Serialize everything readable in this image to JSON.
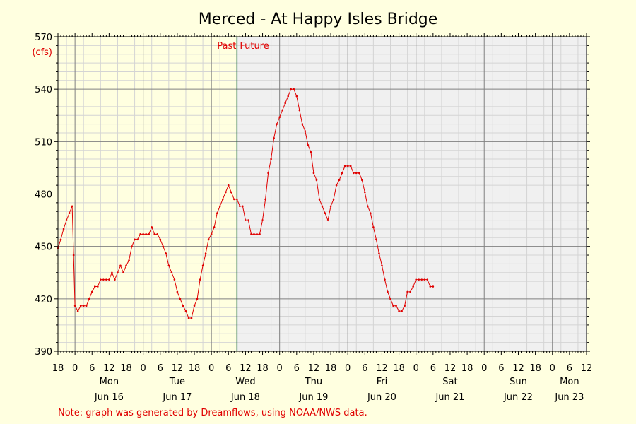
{
  "chart_data": {
    "type": "line",
    "title": "Merced - At Happy Isles Bridge",
    "ylabel": "(cfs)",
    "ylim": [
      390,
      570
    ],
    "yticks": [
      390,
      420,
      450,
      480,
      510,
      540,
      570
    ],
    "x_unit": "hours since Sun Jun 15 18:00",
    "xlim": [
      0,
      186
    ],
    "hour_tick_labels": [
      "18",
      "0",
      "6",
      "12",
      "18",
      "0",
      "6",
      "12",
      "18",
      "0",
      "6",
      "12",
      "18",
      "0",
      "6",
      "12",
      "18",
      "0",
      "6",
      "12",
      "18",
      "0",
      "6",
      "12",
      "18",
      "0",
      "6",
      "12",
      "18",
      "0",
      "6",
      "12"
    ],
    "day_labels": [
      {
        "weekday": "Mon",
        "date": "Jun 16"
      },
      {
        "weekday": "Tue",
        "date": "Jun 17"
      },
      {
        "weekday": "Wed",
        "date": "Jun 18"
      },
      {
        "weekday": "Thu",
        "date": "Jun 19"
      },
      {
        "weekday": "Fri",
        "date": "Jun 20"
      },
      {
        "weekday": "Sat",
        "date": "Jun 21"
      },
      {
        "weekday": "Sun",
        "date": "Jun 22"
      },
      {
        "weekday": "Mon",
        "date": "Jun 23"
      }
    ],
    "now_hour": 63,
    "past_label": "Past",
    "future_label": "Future",
    "series": [
      {
        "color": "#e00000",
        "points": [
          [
            0,
            449
          ],
          [
            1,
            454
          ],
          [
            2,
            460
          ],
          [
            3,
            465
          ],
          [
            4,
            469
          ],
          [
            5,
            473
          ],
          [
            5.5,
            445
          ],
          [
            6,
            416
          ],
          [
            7,
            413
          ],
          [
            8,
            416
          ],
          [
            9,
            416
          ],
          [
            10,
            416
          ],
          [
            11,
            420
          ],
          [
            12,
            424
          ],
          [
            13,
            427
          ],
          [
            14,
            427
          ],
          [
            15,
            431
          ],
          [
            16,
            431
          ],
          [
            17,
            431
          ],
          [
            18,
            431
          ],
          [
            19,
            435
          ],
          [
            20,
            431
          ],
          [
            21,
            435
          ],
          [
            22,
            439
          ],
          [
            23,
            435
          ],
          [
            24,
            439
          ],
          [
            25,
            442
          ],
          [
            26,
            450
          ],
          [
            27,
            454
          ],
          [
            28,
            454
          ],
          [
            29,
            457
          ],
          [
            30,
            457
          ],
          [
            31,
            457
          ],
          [
            32,
            457
          ],
          [
            33,
            461
          ],
          [
            34,
            457
          ],
          [
            35,
            457
          ],
          [
            36,
            454
          ],
          [
            37,
            450
          ],
          [
            38,
            446
          ],
          [
            39,
            439
          ],
          [
            40,
            435
          ],
          [
            41,
            431
          ],
          [
            42,
            424
          ],
          [
            43,
            420
          ],
          [
            44,
            416
          ],
          [
            45,
            413
          ],
          [
            46,
            409
          ],
          [
            47,
            409
          ],
          [
            48,
            416
          ],
          [
            49,
            420
          ],
          [
            50,
            431
          ],
          [
            51,
            439
          ],
          [
            52,
            446
          ],
          [
            53,
            454
          ],
          [
            54,
            457
          ],
          [
            55,
            461
          ],
          [
            56,
            469
          ],
          [
            57,
            473
          ],
          [
            58,
            477
          ],
          [
            59,
            481
          ],
          [
            60,
            485
          ],
          [
            61,
            481
          ],
          [
            62,
            477
          ],
          [
            63,
            477
          ],
          [
            64,
            473
          ],
          [
            65,
            473
          ],
          [
            66,
            465
          ],
          [
            67,
            465
          ],
          [
            68,
            457
          ],
          [
            69,
            457
          ],
          [
            70,
            457
          ],
          [
            71,
            457
          ],
          [
            72,
            465
          ],
          [
            73,
            477
          ],
          [
            74,
            492
          ],
          [
            75,
            500
          ],
          [
            76,
            512
          ],
          [
            77,
            520
          ],
          [
            78,
            524
          ],
          [
            79,
            528
          ],
          [
            80,
            532
          ],
          [
            81,
            536
          ],
          [
            82,
            540
          ],
          [
            83,
            540
          ],
          [
            84,
            536
          ],
          [
            85,
            528
          ],
          [
            86,
            520
          ],
          [
            87,
            516
          ],
          [
            88,
            508
          ],
          [
            89,
            504
          ],
          [
            90,
            492
          ],
          [
            91,
            488
          ],
          [
            92,
            477
          ],
          [
            93,
            473
          ],
          [
            94,
            469
          ],
          [
            95,
            465
          ],
          [
            96,
            473
          ],
          [
            97,
            477
          ],
          [
            98,
            485
          ],
          [
            99,
            488
          ],
          [
            100,
            492
          ],
          [
            101,
            496
          ],
          [
            102,
            496
          ],
          [
            103,
            496
          ],
          [
            104,
            492
          ],
          [
            105,
            492
          ],
          [
            106,
            492
          ],
          [
            107,
            488
          ],
          [
            108,
            481
          ],
          [
            109,
            473
          ],
          [
            110,
            469
          ],
          [
            111,
            461
          ],
          [
            112,
            454
          ],
          [
            113,
            446
          ],
          [
            114,
            439
          ],
          [
            115,
            431
          ],
          [
            116,
            424
          ],
          [
            117,
            420
          ],
          [
            118,
            416
          ],
          [
            119,
            416
          ],
          [
            120,
            413
          ],
          [
            121,
            413
          ],
          [
            122,
            416
          ],
          [
            123,
            424
          ],
          [
            124,
            424
          ],
          [
            125,
            427
          ],
          [
            126,
            431
          ],
          [
            127,
            431
          ],
          [
            128,
            431
          ],
          [
            129,
            431
          ],
          [
            130,
            431
          ],
          [
            131,
            427
          ],
          [
            132,
            427
          ]
        ]
      }
    ],
    "note": "Note: graph was generated by Dreamflows, using NOAA/NWS data."
  }
}
